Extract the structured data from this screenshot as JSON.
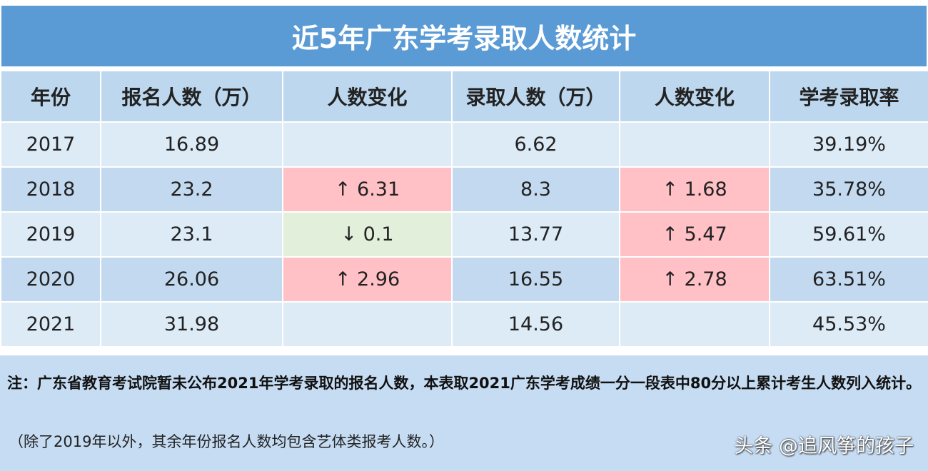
{
  "title": "近5年广东学考录取人数统计",
  "headers": [
    "年份",
    "报名人数（万）",
    "人数变化",
    "录取人数（万）",
    "人数变化",
    "学考录取率"
  ],
  "rows": [
    {
      "year": "2017",
      "applicants": "16.89",
      "app_change": "",
      "app_dir": "",
      "admitted": "6.62",
      "adm_change": "",
      "adm_dir": "",
      "rate": "39.19%"
    },
    {
      "year": "2018",
      "applicants": "23.2",
      "app_change": "↑ 6.31",
      "app_dir": "up",
      "admitted": "8.3",
      "adm_change": "↑ 1.68",
      "adm_dir": "up",
      "rate": "35.78%"
    },
    {
      "year": "2019",
      "applicants": "23.1",
      "app_change": "↓ 0.1",
      "app_dir": "down",
      "admitted": "13.77",
      "adm_change": "↑ 5.47",
      "adm_dir": "up",
      "rate": "59.61%"
    },
    {
      "year": "2020",
      "applicants": "26.06",
      "app_change": "↑ 2.96",
      "app_dir": "up",
      "admitted": "16.55",
      "adm_change": "↑ 2.78",
      "adm_dir": "up",
      "rate": "63.51%"
    },
    {
      "year": "2021",
      "applicants": "31.98",
      "app_change": "",
      "app_dir": "",
      "admitted": "14.56",
      "adm_change": "",
      "adm_dir": "",
      "rate": "45.53%"
    }
  ],
  "colors": {
    "title_bg": "#5b9bd5",
    "increase": "#ffc0c6",
    "decrease": "#e2efda"
  },
  "note": {
    "main": "注：广东省教育考试院暂未公布2021年学考录取的报名人数，本表取2021广东学考成绩一分一段表中80分以上累计考生人数列入统计。",
    "sub": "（除了2019年以外，其余年份报名人数均包含艺体类报考人数。）",
    "watermark": "头条 @追风筝的孩子"
  }
}
